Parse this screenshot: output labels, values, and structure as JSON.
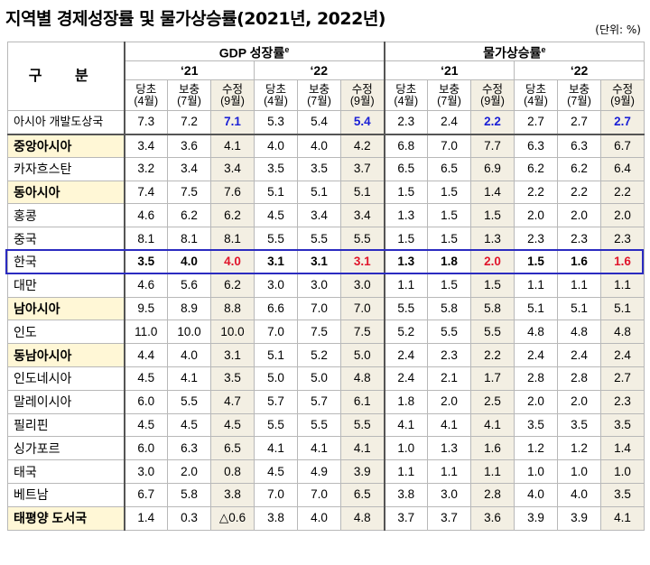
{
  "title": "지역별 경제성장률 및 물가상승률(2021년, 2022년)",
  "unit": "(단위: %)",
  "header": {
    "gubun": "구 분",
    "gdp": "GDP 성장률",
    "gdp_sup": "e",
    "cpi": "물가상승률",
    "cpi_sup": "e",
    "years": [
      "‘21",
      "‘22",
      "‘21",
      "‘22"
    ],
    "sub": [
      [
        "당초",
        "(4월)"
      ],
      [
        "보충",
        "(7월)"
      ],
      [
        "수정",
        "(9월)"
      ],
      [
        "당초",
        "(4월)"
      ],
      [
        "보충",
        "(7월)"
      ],
      [
        "수정",
        "(9월)"
      ],
      [
        "당초",
        "(4월)"
      ],
      [
        "보충",
        "(7월)"
      ],
      [
        "수정",
        "(9월)"
      ],
      [
        "당초",
        "(4월)"
      ],
      [
        "보충",
        "(7월)"
      ],
      [
        "수정",
        "(9월)"
      ]
    ]
  },
  "rows": [
    {
      "name": "아시아 개발도상국",
      "type": "top",
      "values": [
        "7.3",
        "7.2",
        "7.1",
        "5.3",
        "5.4",
        "5.4",
        "2.3",
        "2.4",
        "2.2",
        "2.7",
        "2.7",
        "2.7"
      ]
    },
    {
      "name": "중앙아시아",
      "type": "region",
      "values": [
        "3.4",
        "3.6",
        "4.1",
        "4.0",
        "4.0",
        "4.2",
        "6.8",
        "7.0",
        "7.7",
        "6.3",
        "6.3",
        "6.7"
      ]
    },
    {
      "name": "카자흐스탄",
      "type": "country",
      "values": [
        "3.2",
        "3.4",
        "3.4",
        "3.5",
        "3.5",
        "3.7",
        "6.5",
        "6.5",
        "6.9",
        "6.2",
        "6.2",
        "6.4"
      ]
    },
    {
      "name": "동아시아",
      "type": "region",
      "values": [
        "7.4",
        "7.5",
        "7.6",
        "5.1",
        "5.1",
        "5.1",
        "1.5",
        "1.5",
        "1.4",
        "2.2",
        "2.2",
        "2.2"
      ]
    },
    {
      "name": "홍콩",
      "type": "country",
      "values": [
        "4.6",
        "6.2",
        "6.2",
        "4.5",
        "3.4",
        "3.4",
        "1.3",
        "1.5",
        "1.5",
        "2.0",
        "2.0",
        "2.0"
      ]
    },
    {
      "name": "중국",
      "type": "country",
      "values": [
        "8.1",
        "8.1",
        "8.1",
        "5.5",
        "5.5",
        "5.5",
        "1.5",
        "1.5",
        "1.3",
        "2.3",
        "2.3",
        "2.3"
      ]
    },
    {
      "name": "한국",
      "type": "korea",
      "values": [
        "3.5",
        "4.0",
        "4.0",
        "3.1",
        "3.1",
        "3.1",
        "1.3",
        "1.8",
        "2.0",
        "1.5",
        "1.6",
        "1.6"
      ]
    },
    {
      "name": "대만",
      "type": "country",
      "values": [
        "4.6",
        "5.6",
        "6.2",
        "3.0",
        "3.0",
        "3.0",
        "1.1",
        "1.5",
        "1.5",
        "1.1",
        "1.1",
        "1.1"
      ]
    },
    {
      "name": "남아시아",
      "type": "region",
      "values": [
        "9.5",
        "8.9",
        "8.8",
        "6.6",
        "7.0",
        "7.0",
        "5.5",
        "5.8",
        "5.8",
        "5.1",
        "5.1",
        "5.1"
      ]
    },
    {
      "name": "인도",
      "type": "country",
      "values": [
        "11.0",
        "10.0",
        "10.0",
        "7.0",
        "7.5",
        "7.5",
        "5.2",
        "5.5",
        "5.5",
        "4.8",
        "4.8",
        "4.8"
      ]
    },
    {
      "name": "동남아시아",
      "type": "region",
      "values": [
        "4.4",
        "4.0",
        "3.1",
        "5.1",
        "5.2",
        "5.0",
        "2.4",
        "2.3",
        "2.2",
        "2.4",
        "2.4",
        "2.4"
      ]
    },
    {
      "name": "인도네시아",
      "type": "country",
      "values": [
        "4.5",
        "4.1",
        "3.5",
        "5.0",
        "5.0",
        "4.8",
        "2.4",
        "2.1",
        "1.7",
        "2.8",
        "2.8",
        "2.7"
      ]
    },
    {
      "name": "말레이시아",
      "type": "country",
      "values": [
        "6.0",
        "5.5",
        "4.7",
        "5.7",
        "5.7",
        "6.1",
        "1.8",
        "2.0",
        "2.5",
        "2.0",
        "2.0",
        "2.3"
      ]
    },
    {
      "name": "필리핀",
      "type": "country",
      "values": [
        "4.5",
        "4.5",
        "4.5",
        "5.5",
        "5.5",
        "5.5",
        "4.1",
        "4.1",
        "4.1",
        "3.5",
        "3.5",
        "3.5"
      ]
    },
    {
      "name": "싱가포르",
      "type": "country",
      "values": [
        "6.0",
        "6.3",
        "6.5",
        "4.1",
        "4.1",
        "4.1",
        "1.0",
        "1.3",
        "1.6",
        "1.2",
        "1.2",
        "1.4"
      ]
    },
    {
      "name": "태국",
      "type": "country",
      "values": [
        "3.0",
        "2.0",
        "0.8",
        "4.5",
        "4.9",
        "3.9",
        "1.1",
        "1.1",
        "1.1",
        "1.0",
        "1.0",
        "1.0"
      ]
    },
    {
      "name": "베트남",
      "type": "country",
      "values": [
        "6.7",
        "5.8",
        "3.8",
        "7.0",
        "7.0",
        "6.5",
        "3.8",
        "3.0",
        "2.8",
        "4.0",
        "4.0",
        "3.5"
      ]
    },
    {
      "name": "태평양 도서국",
      "type": "region",
      "values": [
        "1.4",
        "0.3",
        "△0.6",
        "3.8",
        "4.0",
        "4.8",
        "3.7",
        "3.7",
        "3.6",
        "3.9",
        "3.9",
        "4.1"
      ]
    }
  ]
}
